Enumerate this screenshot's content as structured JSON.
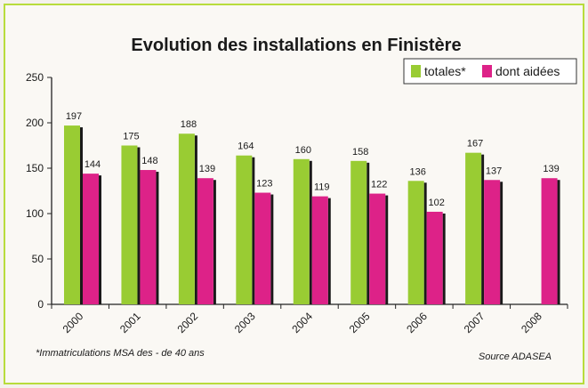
{
  "chart_data": {
    "type": "bar",
    "title": "Evolution des installations en Finistère",
    "categories": [
      "2000",
      "2001",
      "2002",
      "2003",
      "2004",
      "2005",
      "2006",
      "2007",
      "2008"
    ],
    "series": [
      {
        "name": "totales*",
        "values": [
          197,
          175,
          188,
          164,
          160,
          158,
          136,
          167,
          null
        ],
        "color": "#99cc33"
      },
      {
        "name": "dont aidées",
        "values": [
          144,
          148,
          139,
          123,
          119,
          122,
          102,
          137,
          139
        ],
        "color": "#dd2288"
      }
    ],
    "ylim": [
      0,
      250
    ],
    "yticks": [
      "0",
      "50",
      "100",
      "150",
      "200",
      "250"
    ],
    "grid": false,
    "legend_position": "top-right"
  },
  "footnote": "*Immatriculations MSA des - de 40 ans",
  "source": "Source ADASEA",
  "colors": {
    "border": "#b8dc3c",
    "shadow": "#1a1a1a"
  }
}
